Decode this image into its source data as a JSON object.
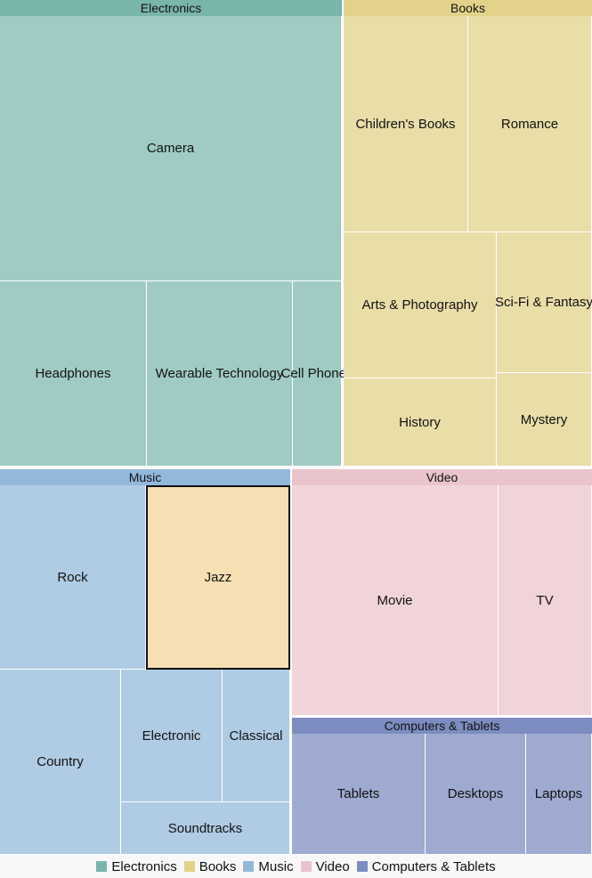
{
  "chart_data": {
    "type": "treemap",
    "title": "",
    "legend_position": "bottom",
    "selected": "Jazz",
    "selected_color": "#f5dfb3",
    "groups": [
      {
        "name": "Electronics",
        "header_color": "#7ab5ab",
        "color": "#a0cbc4",
        "children": [
          {
            "name": "Camera",
            "value": 100
          },
          {
            "name": "Headphones",
            "value": 30
          },
          {
            "name": "Wearable Technology",
            "value": 30
          },
          {
            "name": "Cell Phones",
            "value": 10
          }
        ]
      },
      {
        "name": "Books",
        "header_color": "#e3d38a",
        "color": "#e9dda8",
        "children": [
          {
            "name": "Children's Books",
            "value": 30
          },
          {
            "name": "Romance",
            "value": 30
          },
          {
            "name": "Arts & Photography",
            "value": 25
          },
          {
            "name": "History",
            "value": 15
          },
          {
            "name": "Sci-Fi & Fantasy",
            "value": 15
          },
          {
            "name": "Mystery",
            "value": 10
          }
        ]
      },
      {
        "name": "Music",
        "header_color": "#93b8dc",
        "color": "#b0cbe4",
        "children": [
          {
            "name": "Rock",
            "value": 30
          },
          {
            "name": "Jazz",
            "value": 30
          },
          {
            "name": "Country",
            "value": 25
          },
          {
            "name": "Electronic",
            "value": 15
          },
          {
            "name": "Classical",
            "value": 10
          },
          {
            "name": "Soundtracks",
            "value": 10
          }
        ]
      },
      {
        "name": "Video",
        "header_color": "#eac4cc",
        "color": "#f0d4d9",
        "children": [
          {
            "name": "Movie",
            "value": 50
          },
          {
            "name": "TV",
            "value": 25
          }
        ]
      },
      {
        "name": "Computers & Tablets",
        "header_color": "#7d8cc0",
        "color": "#9eaacf",
        "children": [
          {
            "name": "Tablets",
            "value": 18
          },
          {
            "name": "Desktops",
            "value": 14
          },
          {
            "name": "Laptops",
            "value": 9
          }
        ]
      }
    ]
  }
}
